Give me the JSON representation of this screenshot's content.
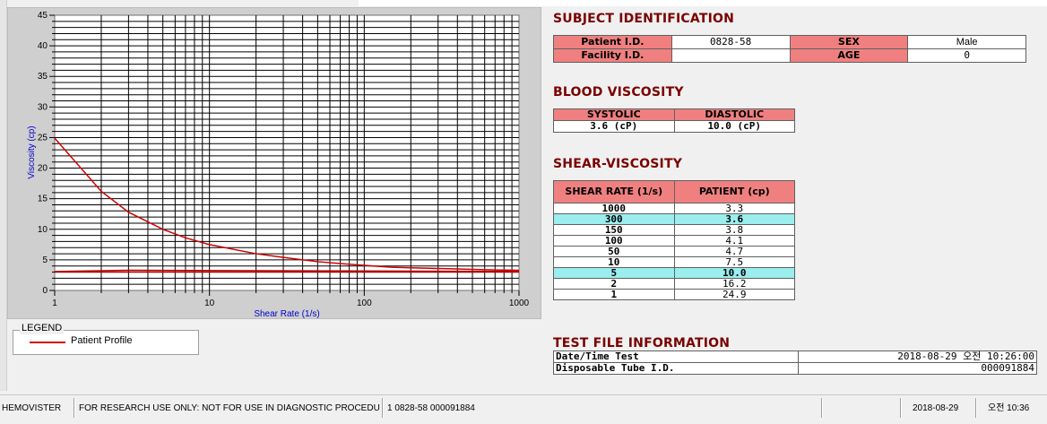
{
  "chart_data": {
    "type": "line",
    "title": "",
    "xlabel": "Shear Rate (1/s)",
    "ylabel": "Viscosity (cp)",
    "xscale": "log",
    "xlim": [
      1,
      1000
    ],
    "ylim": [
      0,
      45
    ],
    "x_ticks": [
      1,
      10,
      100,
      1000
    ],
    "x_tick_labels": [
      "1",
      "10",
      "100",
      "1000"
    ],
    "y_ticks": [
      0,
      5,
      10,
      15,
      20,
      25,
      30,
      35,
      40,
      45
    ],
    "y_tick_labels": [
      "0",
      "5",
      "10",
      "15",
      "20",
      "25",
      "30",
      "35",
      "40",
      "45"
    ],
    "grid": true,
    "legend": {
      "placement": "bottom-left",
      "title": "LEGEND"
    },
    "series": [
      {
        "name": "Patient Profile",
        "color": "#d00000",
        "x": [
          1,
          2,
          3,
          5,
          7,
          10,
          20,
          30,
          50,
          70,
          100,
          150,
          200,
          300,
          500,
          700,
          1000
        ],
        "y": [
          24.9,
          16.2,
          12.8,
          10.0,
          8.6,
          7.5,
          6.0,
          5.4,
          4.7,
          4.4,
          4.1,
          3.8,
          3.7,
          3.6,
          3.45,
          3.35,
          3.3
        ]
      }
    ],
    "baseline_lines": [
      {
        "color": "#b00000",
        "x": [
          1,
          3,
          1000
        ],
        "y": [
          3.1,
          3.3,
          3.1
        ]
      },
      {
        "color": "#b00000",
        "x": [
          1,
          1000
        ],
        "y": [
          3.0,
          3.0
        ]
      }
    ]
  },
  "subject": {
    "title": "SUBJECT IDENTIFICATION",
    "patient_id_label": "Patient I.D.",
    "patient_id_value": "0828-58",
    "sex_label": "SEX",
    "sex_value": "Male",
    "facility_id_label": "Facility I.D.",
    "facility_id_value": "",
    "age_label": "AGE",
    "age_value": "0"
  },
  "blood": {
    "title": "BLOOD VISCOSITY",
    "systolic_label": "SYSTOLIC",
    "diastolic_label": "DIASTOLIC",
    "systolic_value": "3.6 (cP)",
    "diastolic_value": "10.0 (cP)"
  },
  "shear": {
    "title": "SHEAR-VISCOSITY",
    "rate_header": "SHEAR RATE (1/s)",
    "patient_header": "PATIENT (cp)",
    "rows": [
      {
        "rate": "1000",
        "value": "3.3",
        "highlight": false
      },
      {
        "rate": "300",
        "value": "3.6",
        "highlight": true
      },
      {
        "rate": "150",
        "value": "3.8",
        "highlight": false
      },
      {
        "rate": "100",
        "value": "4.1",
        "highlight": false
      },
      {
        "rate": "50",
        "value": "4.7",
        "highlight": false
      },
      {
        "rate": "10",
        "value": "7.5",
        "highlight": false
      },
      {
        "rate": "5",
        "value": "10.0",
        "highlight": true
      },
      {
        "rate": "2",
        "value": "16.2",
        "highlight": false
      },
      {
        "rate": "1",
        "value": "24.9",
        "highlight": false
      }
    ]
  },
  "testfile": {
    "title": "TEST FILE INFORMATION",
    "datetime_label": "Date/Time Test",
    "datetime_value": "2018-08-29  오전 10:26:00",
    "tube_label": "Disposable Tube I.D.",
    "tube_value": "000091884"
  },
  "statusbar": {
    "app": "HEMOVISTER",
    "notice": "FOR RESEARCH USE ONLY: NOT FOR USE IN DIAGNOSTIC PROCEDURES",
    "record": "1  0828-58  000091884",
    "date": "2018-08-29",
    "time": "오전 10:36"
  },
  "colors": {
    "header_red": "#f08080",
    "highlight_cyan": "#9aeeee",
    "title_maroon": "#7a0000",
    "curve_red": "#d00000"
  }
}
